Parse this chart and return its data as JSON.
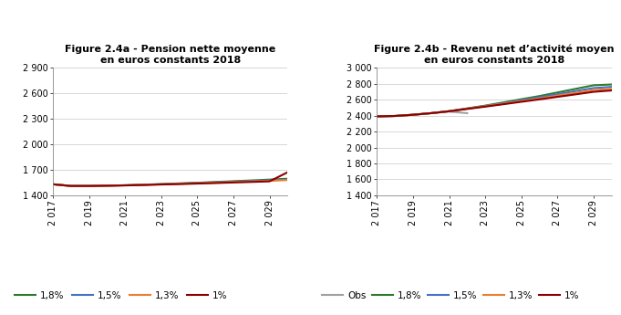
{
  "title_a": "Figure 2.4a - Pension nette moyenne\nen euros constants 2018",
  "title_b": "Figure 2.4b - Revenu net d’activité moyen\nen euros constants 2018",
  "years": [
    2017,
    2018,
    2019,
    2020,
    2021,
    2022,
    2023,
    2024,
    2025,
    2026,
    2027,
    2028,
    2029,
    2030
  ],
  "panel_a": {
    "series_18": [
      1530,
      1510,
      1510,
      1513,
      1518,
      1525,
      1532,
      1540,
      1548,
      1557,
      1566,
      1575,
      1585,
      1595
    ],
    "series_15": [
      1530,
      1510,
      1510,
      1513,
      1518,
      1524,
      1530,
      1537,
      1545,
      1552,
      1560,
      1568,
      1576,
      1585
    ],
    "series_13": [
      1530,
      1510,
      1510,
      1513,
      1517,
      1523,
      1529,
      1535,
      1542,
      1549,
      1556,
      1563,
      1571,
      1579
    ],
    "series_1": [
      1530,
      1510,
      1510,
      1513,
      1516,
      1521,
      1527,
      1532,
      1538,
      1544,
      1551,
      1557,
      1564,
      1671
    ],
    "ylim": [
      1400,
      2900
    ],
    "yticks": [
      1400,
      1700,
      2000,
      2300,
      2600,
      2900
    ]
  },
  "panel_b": {
    "obs": [
      2390,
      2395,
      2410,
      2430,
      2450,
      2430,
      null,
      null,
      null,
      null,
      null,
      null,
      null,
      null
    ],
    "series_18": [
      2390,
      2395,
      2410,
      2430,
      2455,
      2490,
      2525,
      2565,
      2605,
      2645,
      2690,
      2735,
      2780,
      2790
    ],
    "series_15": [
      2390,
      2395,
      2410,
      2430,
      2455,
      2488,
      2520,
      2555,
      2593,
      2630,
      2668,
      2707,
      2745,
      2760
    ],
    "series_13": [
      2390,
      2395,
      2410,
      2430,
      2454,
      2486,
      2517,
      2549,
      2582,
      2615,
      2650,
      2685,
      2720,
      2735
    ],
    "series_1": [
      2390,
      2395,
      2410,
      2430,
      2454,
      2483,
      2512,
      2542,
      2573,
      2603,
      2635,
      2666,
      2698,
      2715
    ],
    "ylim": [
      1400,
      3000
    ],
    "yticks": [
      1400,
      1600,
      1800,
      2000,
      2200,
      2400,
      2600,
      2800,
      3000
    ]
  },
  "xticks": [
    2017,
    2019,
    2021,
    2023,
    2025,
    2027,
    2029
  ],
  "xtick_labels": [
    "2 017",
    "2 019",
    "2 021",
    "2 023",
    "2 025",
    "2 027",
    "2 029"
  ],
  "color_18": "#2d7a2d",
  "color_15": "#4472c4",
  "color_13": "#ed7d31",
  "color_1": "#8b0000",
  "color_obs": "#a0a0a0",
  "linewidth": 1.5
}
